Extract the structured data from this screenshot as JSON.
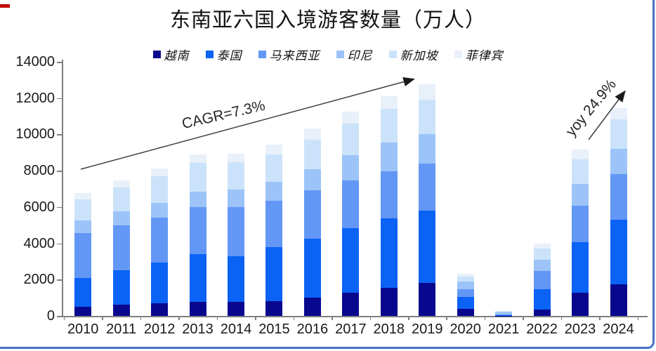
{
  "frame": {
    "border_color": "#4472C4",
    "corner_mark_color": "#c00000"
  },
  "chart_data": {
    "type": "bar",
    "stacked": true,
    "title": "东南亚六国入境游客数量（万人）",
    "xlabel": "",
    "ylabel": "",
    "ylim": [
      0,
      14000
    ],
    "ytick_interval": 2000,
    "ytick_labels": [
      "0",
      "2000",
      "4000",
      "6000",
      "8000",
      "10000",
      "12000",
      "14000"
    ],
    "grid": false,
    "legend_position": "top",
    "categories": [
      "2010",
      "2011",
      "2012",
      "2013",
      "2014",
      "2015",
      "2016",
      "2017",
      "2018",
      "2019",
      "2020",
      "2021",
      "2022",
      "2023",
      "2024"
    ],
    "series": [
      {
        "key": "vietnam",
        "name": "越南",
        "color": "#08088F",
        "values": [
          504,
          601,
          685,
          757,
          787,
          794,
          1001,
          1292,
          1550,
          1801,
          384,
          16,
          366,
          1260,
          1750
        ]
      },
      {
        "key": "thailand",
        "name": "泰国",
        "color": "#0B63F5",
        "values": [
          1594,
          1923,
          2235,
          2655,
          2481,
          2992,
          3253,
          3559,
          3828,
          3992,
          670,
          43,
          1115,
          2815,
          3550
        ]
      },
      {
        "key": "malaysia",
        "name": "马来西亚",
        "color": "#6397F5",
        "values": [
          2458,
          2471,
          2503,
          2572,
          2744,
          2572,
          2676,
          2595,
          2583,
          2610,
          433,
          13,
          1007,
          2014,
          2500
        ]
      },
      {
        "key": "indonesia",
        "name": "印尼",
        "color": "#9CC4F8",
        "values": [
          700,
          765,
          804,
          880,
          944,
          1023,
          1152,
          1404,
          1581,
          1611,
          405,
          156,
          589,
          1168,
          1390
        ]
      },
      {
        "key": "singapore",
        "name": "新加坡",
        "color": "#CBE3FA",
        "values": [
          1164,
          1317,
          1450,
          1557,
          1510,
          1523,
          1640,
          1742,
          1851,
          1912,
          274,
          33,
          631,
          1361,
          1650
        ]
      },
      {
        "key": "philippines",
        "name": "菲律宾",
        "color": "#E8F0FA",
        "values": [
          352,
          392,
          427,
          468,
          483,
          536,
          597,
          662,
          717,
          826,
          148,
          16,
          265,
          545,
          605
        ]
      }
    ],
    "annotations": [
      {
        "text": "CAGR=7.3%",
        "arrow_from_xy": [
          115,
          241
        ],
        "arrow_to_xy": [
          588,
          113
        ]
      },
      {
        "text": "yoy 24.9%",
        "arrow_from_xy": [
          838,
          199
        ],
        "arrow_to_xy": [
          889,
          131
        ]
      }
    ]
  }
}
